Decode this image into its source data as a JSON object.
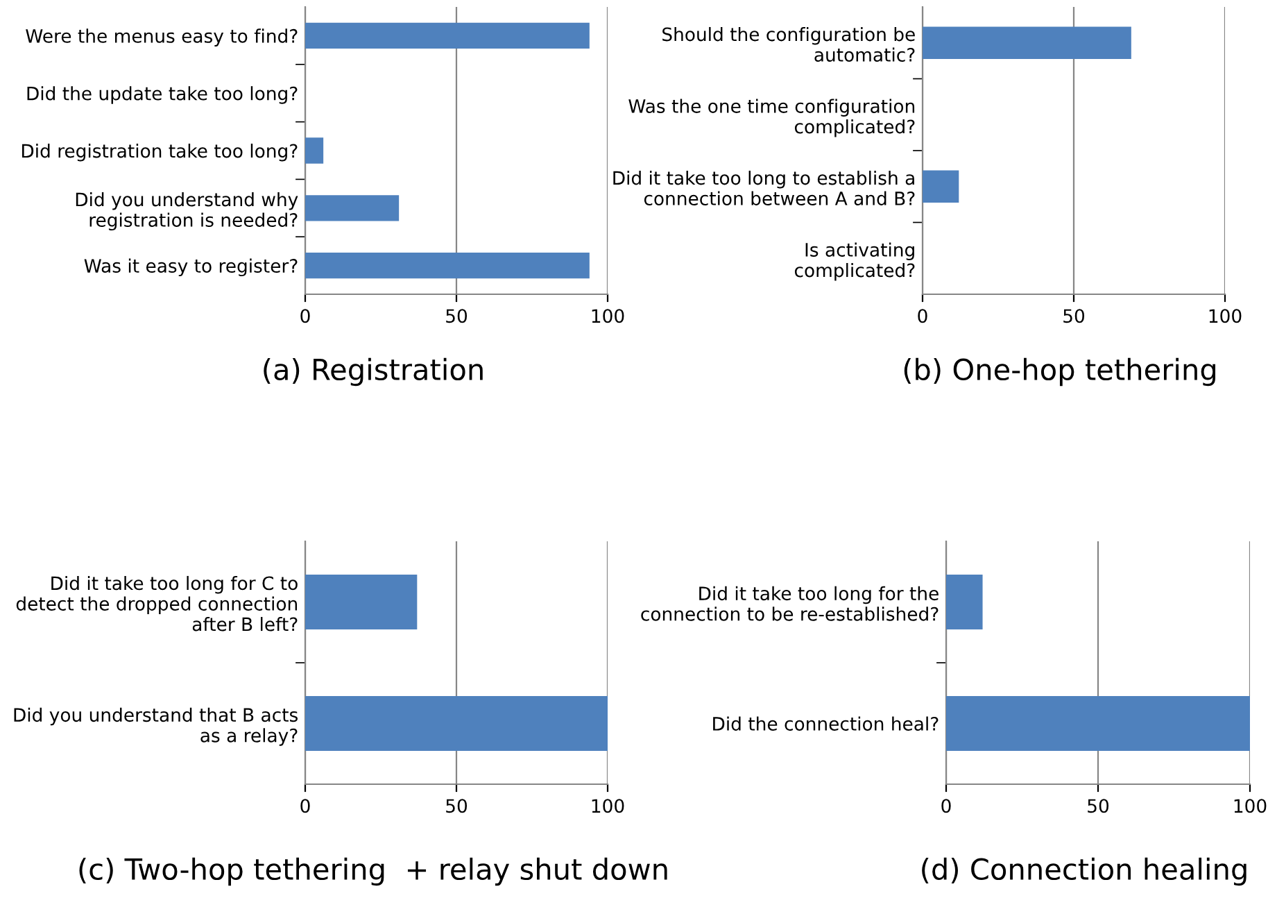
{
  "chart_data": [
    {
      "type": "bar",
      "orientation": "horizontal",
      "title": "(a) Registration",
      "categories": [
        "Were the menus easy to find?",
        "Did the update take too long?",
        "Did registration take too long?",
        "Did you understand why\nregistration is needed?",
        "Was it easy to register?"
      ],
      "values": [
        94,
        0,
        6,
        31,
        94
      ],
      "color": "#4f81bd",
      "xlim": [
        0,
        100
      ],
      "xticks": [
        0,
        50,
        100
      ],
      "grid": "x"
    },
    {
      "type": "bar",
      "orientation": "horizontal",
      "title": "(b) One-hop tethering",
      "categories": [
        "Should the configuration be\nautomatic?",
        "Was the one time configuration\ncomplicated?",
        "Did it take too long to establish a\nconnection between A and B?",
        "Is activating\ncomplicated?"
      ],
      "values": [
        69,
        0,
        12,
        0
      ],
      "color": "#4f81bd",
      "xlim": [
        0,
        100
      ],
      "xticks": [
        0,
        50,
        100
      ],
      "grid": "x"
    },
    {
      "type": "bar",
      "orientation": "horizontal",
      "title": "(c) Two-hop tethering  + relay shut down",
      "categories": [
        "Did it take too long for C to\ndetect the dropped connection\nafter B left?",
        "Did you understand that B acts\nas a relay?"
      ],
      "values": [
        37,
        100
      ],
      "color": "#4f81bd",
      "xlim": [
        0,
        100
      ],
      "xticks": [
        0,
        50,
        100
      ],
      "grid": "x"
    },
    {
      "type": "bar",
      "orientation": "horizontal",
      "title": "(d) Connection healing",
      "categories": [
        "Did it take too long for the\nconnection to be re-established?",
        "Did the connection heal?"
      ],
      "values": [
        12,
        100
      ],
      "color": "#4f81bd",
      "xlim": [
        0,
        100
      ],
      "xticks": [
        0,
        50,
        100
      ],
      "grid": "x"
    }
  ]
}
